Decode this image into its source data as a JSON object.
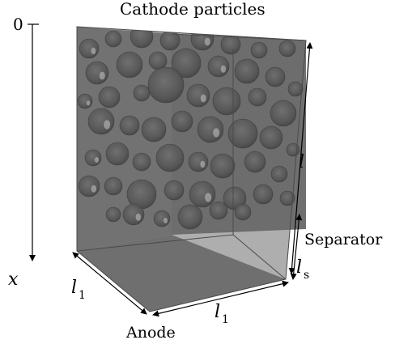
{
  "labels": {
    "title": "Cathode particles",
    "origin": "0",
    "x_axis": "x",
    "l_total": "l",
    "l_sep_sub": "s",
    "l_side": "l",
    "l_side_sub": "1",
    "separator": "Separator",
    "anode": "Anode"
  },
  "colors": {
    "box_fill": "#6f6f6f",
    "box_edge": "#4a4a4a",
    "particle": "#585858",
    "highlight": "#cfcfcf",
    "arrow": "#000000"
  }
}
